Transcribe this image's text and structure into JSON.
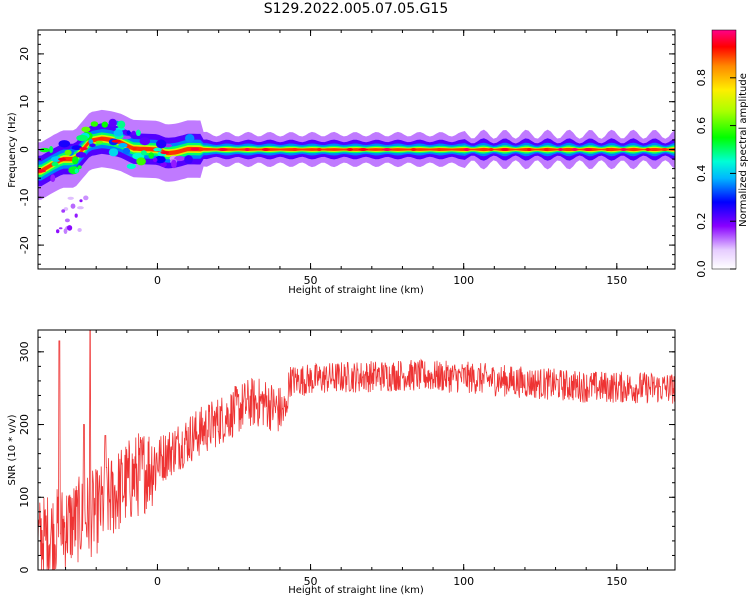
{
  "title": "S129.2022.005.07.05.G15",
  "chart_data": [
    {
      "type": "heatmap",
      "xlabel": "Height of straight line (km)",
      "ylabel": "Frequency (Hz)",
      "xlim": [
        -39,
        169
      ],
      "ylim": [
        -25,
        25
      ],
      "xticks": [
        0,
        50,
        100,
        150
      ],
      "yticks": [
        -20,
        -10,
        0,
        10,
        20
      ],
      "colormap": "gist_ncar",
      "colorbar": {
        "label": "Normalized spectral amplitude",
        "range": [
          0,
          1
        ],
        "ticks": [
          "0.0",
          "0.2",
          "0.4",
          "0.6",
          "0.8"
        ]
      },
      "ridge": [
        {
          "x": -38,
          "f": -4.5
        },
        {
          "x": -34,
          "f": -3.0
        },
        {
          "x": -31,
          "f": -2.0
        },
        {
          "x": -27,
          "f": -2.0
        },
        {
          "x": -22,
          "f": 1.8
        },
        {
          "x": -18,
          "f": 2.3
        },
        {
          "x": -15,
          "f": 2.0
        },
        {
          "x": -12,
          "f": 1.5
        },
        {
          "x": -8,
          "f": 0.2
        },
        {
          "x": 0,
          "f": 0.0
        },
        {
          "x": 3,
          "f": -0.8
        },
        {
          "x": 6,
          "f": -0.6
        },
        {
          "x": 10,
          "f": 0.1
        },
        {
          "x": 20,
          "f": 0.0
        },
        {
          "x": 169,
          "f": 0.0
        }
      ]
    },
    {
      "type": "line",
      "xlabel": "Height of straight line (km)",
      "ylabel": "SNR (10 * v/v)",
      "xlim": [
        -39,
        169
      ],
      "ylim": [
        0,
        330
      ],
      "xticks": [
        0,
        50,
        100,
        150
      ],
      "yticks": [
        0,
        100,
        200,
        300
      ],
      "color": "#ee3333",
      "trend": [
        {
          "x": -39,
          "y": 40
        },
        {
          "x": -30,
          "y": 60
        },
        {
          "x": -20,
          "y": 80
        },
        {
          "x": -10,
          "y": 120
        },
        {
          "x": 0,
          "y": 150
        },
        {
          "x": 10,
          "y": 180
        },
        {
          "x": 20,
          "y": 205
        },
        {
          "x": 30,
          "y": 230
        },
        {
          "x": 35,
          "y": 230
        },
        {
          "x": 42,
          "y": 215
        },
        {
          "x": 43,
          "y": 260
        },
        {
          "x": 60,
          "y": 265
        },
        {
          "x": 80,
          "y": 268
        },
        {
          "x": 100,
          "y": 265
        },
        {
          "x": 120,
          "y": 258
        },
        {
          "x": 140,
          "y": 252
        },
        {
          "x": 169,
          "y": 250
        }
      ],
      "spikes": [
        {
          "x": -32,
          "y": 315
        },
        {
          "x": -22,
          "y": 330
        },
        {
          "x": -24,
          "y": 200
        },
        {
          "x": -17,
          "y": 185
        }
      ]
    }
  ]
}
